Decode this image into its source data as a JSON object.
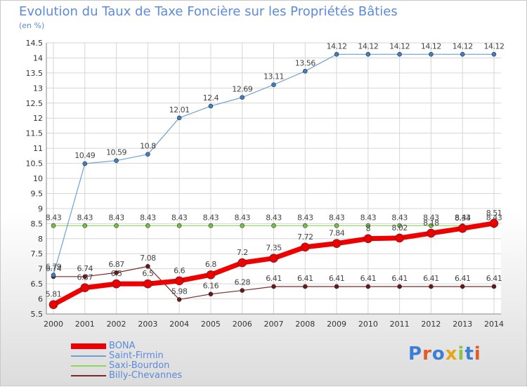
{
  "header": {
    "title": "Evolution du Taux de Taxe Foncière sur les Propriétés Bâties",
    "subtitle": "(en %)"
  },
  "colors": {
    "grid": "#d6d6d6",
    "axis": "#888888",
    "tick_text": "#333333",
    "label_text": "#444444"
  },
  "brand": {
    "logo_text": "Proxiti",
    "letter_colors": [
      "#3b7fd4",
      "#e05a2a",
      "#3b7fd4",
      "#e8a417",
      "#8bc34a",
      "#3b7fd4",
      "#e05a2a"
    ]
  },
  "chart_data": {
    "type": "line",
    "title": "Evolution du Taux de Taxe Foncière sur les Propriétés Bâties",
    "ylabel": "(en %)",
    "xlabel": "",
    "grid": true,
    "ylim": [
      5.5,
      14.5
    ],
    "yticks": [
      5.5,
      6,
      6.5,
      7,
      7.5,
      8,
      8.5,
      9,
      9.5,
      10,
      10.5,
      11,
      11.5,
      12,
      12.5,
      13,
      13.5,
      14,
      14.5
    ],
    "categories": [
      "2000",
      "2001",
      "2002",
      "2003",
      "2004",
      "2005",
      "2006",
      "2007",
      "2008",
      "2009",
      "2010",
      "2011",
      "2012",
      "2013",
      "2014"
    ],
    "legend_position": "bottom-left",
    "series": [
      {
        "name": "Billy-Chevannes",
        "color": "#7a2a2a",
        "marker": "#6b1515",
        "width": 1.2,
        "r": 3,
        "values": [
          6.74,
          6.74,
          6.87,
          7.08,
          5.98,
          6.16,
          6.28,
          6.41,
          6.41,
          6.41,
          6.41,
          6.41,
          6.41,
          6.41,
          6.41
        ],
        "labels": [
          "6.74",
          "6.74",
          "6.87",
          "7.08",
          "5.98",
          "6.16",
          "6.28",
          "6.41",
          "6.41",
          "6.41",
          "6.41",
          "6.41",
          "6.41",
          "6.41",
          "6.41"
        ]
      },
      {
        "name": "Saxi-Bourdon",
        "color": "#8fd45e",
        "marker": "#72c23c",
        "width": 1.2,
        "r": 3,
        "values": [
          8.43,
          8.43,
          8.43,
          8.43,
          8.43,
          8.43,
          8.43,
          8.43,
          8.43,
          8.43,
          8.43,
          8.43,
          8.43,
          8.43,
          8.43
        ],
        "labels": [
          "8.43",
          "8.43",
          "8.43",
          "8.43",
          "8.43",
          "8.43",
          "8.43",
          "8.43",
          "8.43",
          "8.43",
          "8.43",
          "8.43",
          "8.43",
          "8.43",
          "8.43"
        ]
      },
      {
        "name": "Saint-Firmin",
        "color": "#6fa0d2",
        "marker": "#3d7fc0",
        "width": 1.2,
        "r": 3,
        "values": [
          6.79,
          10.49,
          10.59,
          10.8,
          12.01,
          12.4,
          12.69,
          13.11,
          13.56,
          14.12,
          14.12,
          14.12,
          14.12,
          14.12,
          14.12
        ],
        "labels": [
          "6.79",
          "10.49",
          "10.59",
          "10.8",
          "12.01",
          "12.4",
          "12.69",
          "13.11",
          "13.56",
          "14.12",
          "14.12",
          "14.12",
          "14.12",
          "14.12",
          "14.12"
        ]
      },
      {
        "name": "BONA",
        "color": "#ee0000",
        "marker": "#ee0000",
        "width": 7,
        "r": 6,
        "values": [
          5.81,
          6.37,
          6.5,
          6.5,
          6.6,
          6.8,
          7.2,
          7.35,
          7.72,
          7.84,
          8,
          8.02,
          8.18,
          8.34,
          8.51
        ],
        "labels": [
          "5.81",
          "6.37",
          "6.5",
          "6.5",
          "6.6",
          "6.8",
          "7.2",
          "7.35",
          "7.72",
          "7.84",
          "8",
          "8.02",
          "8.18",
          "8.34",
          "8.51"
        ]
      }
    ]
  }
}
